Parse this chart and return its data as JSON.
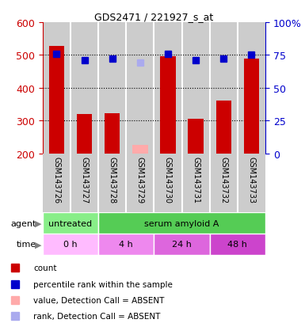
{
  "title": "GDS2471 / 221927_s_at",
  "samples": [
    "GSM143726",
    "GSM143727",
    "GSM143728",
    "GSM143729",
    "GSM143730",
    "GSM143731",
    "GSM143732",
    "GSM143733"
  ],
  "counts": [
    527,
    319,
    323,
    null,
    495,
    305,
    360,
    490
  ],
  "counts_absent": [
    null,
    null,
    null,
    225,
    null,
    null,
    null,
    null
  ],
  "percentile_ranks": [
    76,
    71,
    72,
    null,
    76,
    71,
    72,
    75
  ],
  "percentile_ranks_absent": [
    null,
    null,
    null,
    69,
    null,
    null,
    null,
    null
  ],
  "count_color": "#cc0000",
  "count_absent_color": "#ffaaaa",
  "rank_color": "#0000cc",
  "rank_absent_color": "#aaaaee",
  "ylim_left": [
    200,
    600
  ],
  "ylim_right": [
    0,
    100
  ],
  "yticks_left": [
    200,
    300,
    400,
    500,
    600
  ],
  "yticks_right": [
    0,
    25,
    50,
    75,
    100
  ],
  "ytick_labels_right": [
    "0",
    "25",
    "50",
    "75",
    "100%"
  ],
  "grid_yticks": [
    300,
    400,
    500
  ],
  "agent_labels": [
    {
      "text": "untreated",
      "start": 0,
      "end": 2,
      "color": "#88ee88"
    },
    {
      "text": "serum amyloid A",
      "start": 2,
      "end": 8,
      "color": "#55cc55"
    }
  ],
  "time_labels": [
    {
      "text": "0 h",
      "start": 0,
      "end": 2,
      "color": "#ffbbff"
    },
    {
      "text": "4 h",
      "start": 2,
      "end": 4,
      "color": "#ee88ee"
    },
    {
      "text": "24 h",
      "start": 4,
      "end": 6,
      "color": "#dd66dd"
    },
    {
      "text": "48 h",
      "start": 6,
      "end": 8,
      "color": "#cc44cc"
    }
  ],
  "background_color": "#ffffff",
  "col_bg_color": "#cccccc",
  "col_sep_color": "#ffffff"
}
